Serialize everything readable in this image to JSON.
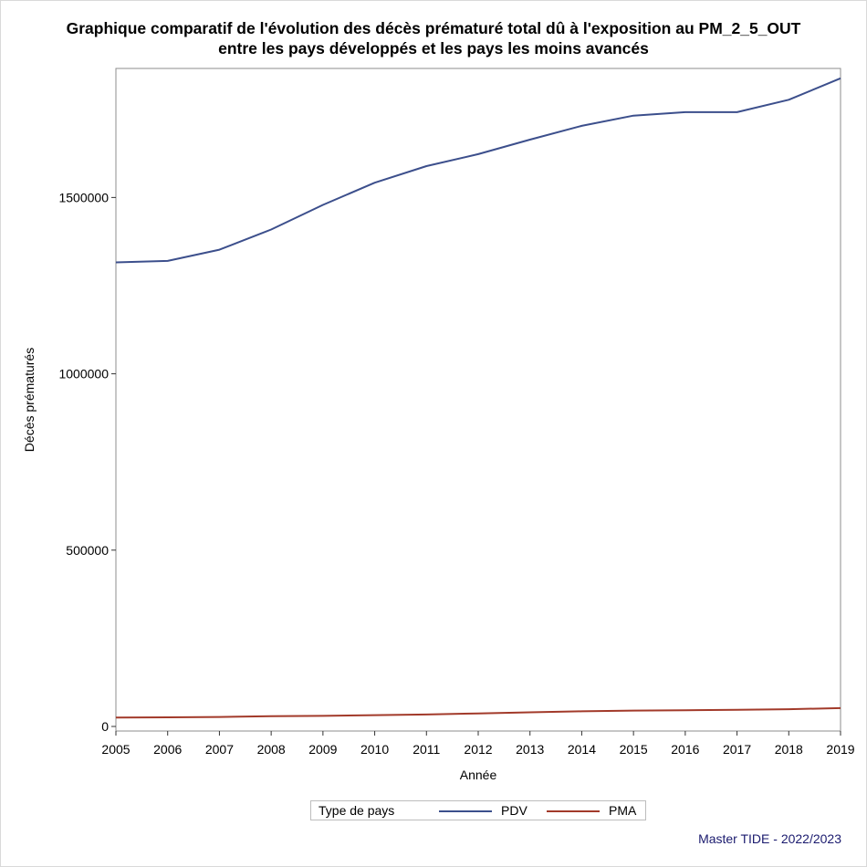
{
  "title_line1": "Graphique comparatif de l'évolution des décès prématuré total dû à l'exposition au PM_2_5_OUT",
  "title_line2": "entre les pays développés et les pays les moins avancés",
  "footer": "Master TIDE - 2022/2023",
  "legend": {
    "title": "Type de pays",
    "items": [
      {
        "label": "PDV",
        "color": "#3c4f8c"
      },
      {
        "label": "PMA",
        "color": "#a23a2a"
      }
    ]
  },
  "chart_data": {
    "type": "line",
    "title": "Graphique comparatif de l'évolution des décès prématuré total dû à l'exposition au PM_2_5_OUT entre les pays développés et les pays les moins avancés",
    "xlabel": "Année",
    "ylabel": "Décès prématurés",
    "x": [
      2005,
      2006,
      2007,
      2008,
      2009,
      2010,
      2011,
      2012,
      2013,
      2014,
      2015,
      2016,
      2017,
      2018,
      2019
    ],
    "xlim": [
      2005,
      2019
    ],
    "ylim": [
      0,
      1840000
    ],
    "yticks": [
      0,
      500000,
      1000000,
      1500000
    ],
    "ytick_labels": [
      "0",
      "500000",
      "1000000",
      "1500000"
    ],
    "grid": false,
    "legend_position": "bottom",
    "series": [
      {
        "name": "PDV",
        "color": "#3c4f8c",
        "values": [
          1316000,
          1320000,
          1352000,
          1409000,
          1479000,
          1542000,
          1589000,
          1623000,
          1664000,
          1703000,
          1732000,
          1742000,
          1742000,
          1777000,
          1838000
        ]
      },
      {
        "name": "PMA",
        "color": "#a23a2a",
        "values": [
          25000,
          26000,
          27000,
          29000,
          30000,
          32000,
          34000,
          37000,
          40000,
          43000,
          45000,
          46000,
          47000,
          49000,
          52000
        ]
      }
    ]
  }
}
